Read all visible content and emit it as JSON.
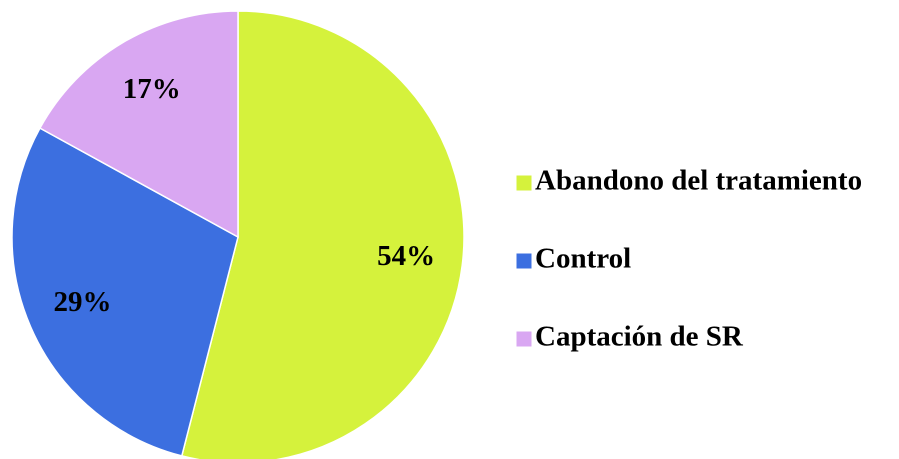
{
  "chart_data": {
    "type": "pie",
    "categories": [
      "Abandono del tratamiento",
      "Control",
      "Captación de SR"
    ],
    "values": [
      54,
      29,
      17
    ],
    "value_labels": [
      "54%",
      "29%",
      "17%"
    ],
    "colors": [
      "#d5f23c",
      "#3c6fe0",
      "#d9a7f2"
    ],
    "legend": "right"
  }
}
